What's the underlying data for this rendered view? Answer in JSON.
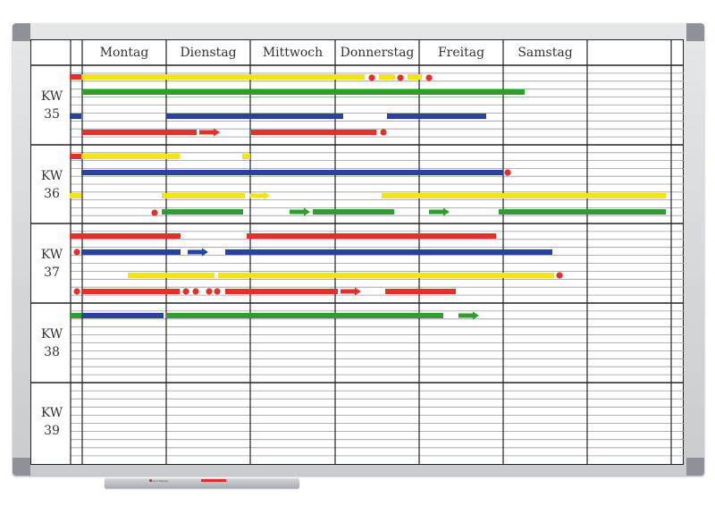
{
  "days": [
    "Montag",
    "Dienstag",
    "Mittwoch",
    "Donnerstag",
    "Freitag",
    "Samstag"
  ],
  "weeks": [
    {
      "kw": "KW",
      "num": "35"
    },
    {
      "kw": "KW",
      "num": "36"
    },
    {
      "kw": "KW",
      "num": "37"
    },
    {
      "kw": "KW",
      "num": "38"
    },
    {
      "kw": "KW",
      "num": "39"
    }
  ],
  "colors": {
    "yellow": "#f2e416",
    "green": "#2e9e2f",
    "blue": "#27449a",
    "red": "#e2312a",
    "frame": "#c9cbcf",
    "line": "#222222"
  },
  "tray": {
    "label": "Brand Marker"
  }
}
